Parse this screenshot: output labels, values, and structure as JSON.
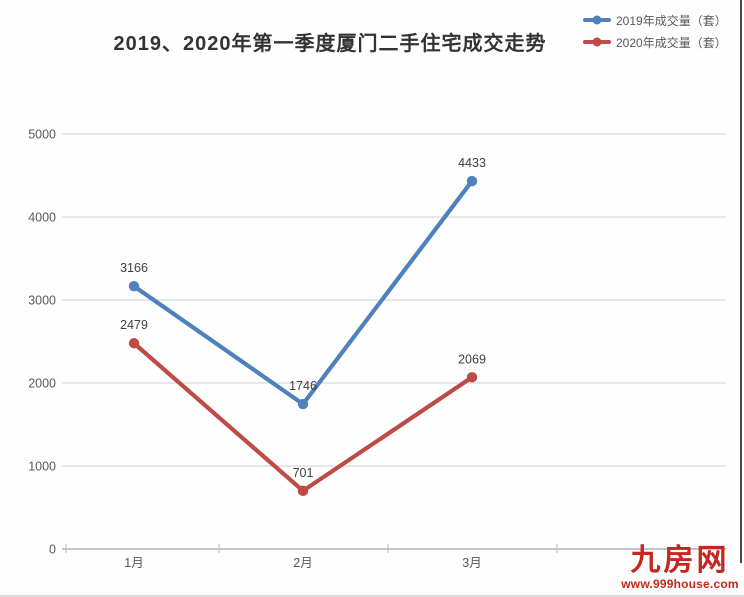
{
  "title": "2019、2020年第一季度厦门二手住宅成交走势",
  "chart_data": {
    "type": "line",
    "title": "2019、2020年第一季度厦门二手住宅成交走势",
    "categories": [
      "1月",
      "2月",
      "3月"
    ],
    "series": [
      {
        "name": "2019年成交量（套）",
        "color": "#4f81bd",
        "values": [
          3166,
          1746,
          4433
        ]
      },
      {
        "name": "2020年成交量（套）",
        "color": "#bf4b47",
        "values": [
          2479,
          701,
          2069
        ]
      }
    ],
    "xlabel": "",
    "ylabel": "",
    "ylim": [
      0,
      5000
    ],
    "ytick_step": 1000,
    "yticks": [
      0,
      1000,
      2000,
      3000,
      4000,
      5000
    ],
    "grid": true,
    "data_labels": true,
    "legend_position": "top-right",
    "colors": {
      "gridline": "#d9d9d9",
      "axis_line": "#a3a3a3",
      "tick": "#c2c2c2",
      "tick_label": "#595959",
      "data_label": "#404040",
      "title": "#333333"
    }
  },
  "footer": {
    "logo_text": "九房网",
    "logo_url_text": "www.999house.com",
    "logo_color": "#c5261d"
  }
}
